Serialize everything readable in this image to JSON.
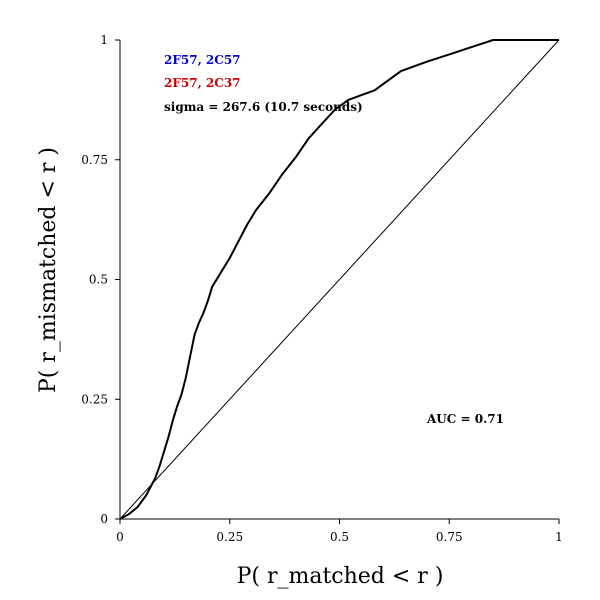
{
  "chart_data": {
    "type": "line",
    "xlabel": "P( r_matched < r )",
    "ylabel": "P( r_mismatched < r )",
    "xlim": [
      0,
      1
    ],
    "ylim": [
      0,
      1
    ],
    "xticks": [
      "0",
      "0.25",
      "0.5",
      "0.75",
      "1"
    ],
    "yticks": [
      "0",
      "0.25",
      "0.5",
      "0.75",
      "1"
    ],
    "grid": false,
    "legend": [
      {
        "text": "2F57, 2C57",
        "color": "#0000cc"
      },
      {
        "text": "2F57, 2C37",
        "color": "#cc0000"
      },
      {
        "text": "sigma = 267.6 (10.7 seconds)",
        "color": "#000000"
      }
    ],
    "annotation": "AUC = 0.71",
    "series": [
      {
        "x": [
          0,
          0.02,
          0.04,
          0.06,
          0.08,
          0.09,
          0.1,
          0.11,
          0.12,
          0.13,
          0.14,
          0.15,
          0.16,
          0.17,
          0.18,
          0.19,
          0.2,
          0.21,
          0.22,
          0.23,
          0.25,
          0.27,
          0.29,
          0.31,
          0.34,
          0.37,
          0.4,
          0.43,
          0.46,
          0.49,
          0.52,
          0.55,
          0.58,
          0.61,
          0.64,
          0.67,
          0.7,
          0.75,
          0.8,
          0.85,
          0.9,
          0.95,
          1.0
        ],
        "y": [
          0,
          0.01,
          0.025,
          0.05,
          0.085,
          0.11,
          0.14,
          0.17,
          0.205,
          0.235,
          0.26,
          0.295,
          0.34,
          0.385,
          0.41,
          0.43,
          0.455,
          0.485,
          0.5,
          0.515,
          0.545,
          0.58,
          0.615,
          0.645,
          0.68,
          0.72,
          0.755,
          0.795,
          0.825,
          0.855,
          0.875,
          0.885,
          0.895,
          0.915,
          0.935,
          0.945,
          0.955,
          0.97,
          0.985,
          1.0,
          1.0,
          1.0,
          1.0
        ]
      },
      {
        "x": [
          0,
          1
        ],
        "y": [
          0,
          1
        ]
      }
    ]
  }
}
